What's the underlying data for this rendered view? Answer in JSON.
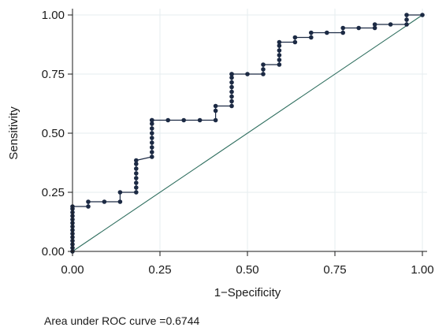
{
  "chart_data": {
    "type": "line",
    "xlabel": "1−Specificity",
    "ylabel": "Sensitivity",
    "xlim": [
      0,
      1
    ],
    "ylim": [
      0,
      1
    ],
    "x_ticks": [
      0,
      0.25,
      0.5,
      0.75,
      1
    ],
    "y_ticks": [
      0,
      0.25,
      0.5,
      0.75,
      1
    ],
    "x_tick_labels": [
      "0.00",
      "0.25",
      "0.50",
      "0.75",
      "1.00"
    ],
    "y_tick_labels": [
      "0.00",
      "0.25",
      "0.50",
      "0.75",
      "1.00"
    ],
    "grid": true,
    "footnote": "Area under ROC curve =0.6744",
    "colors": {
      "curve": "#1c2a44",
      "points": "#1c2a44",
      "reference": "#2e6e5e",
      "grid": "#e6ecef",
      "axis": "#1a1a1a"
    },
    "series": [
      {
        "x": [
          0,
          0,
          0,
          0,
          0,
          0,
          0,
          0,
          0,
          0,
          0,
          0,
          0,
          0,
          0.045,
          0.045,
          0.091,
          0.136,
          0.136,
          0.182,
          0.182,
          0.182,
          0.182,
          0.182,
          0.182,
          0.182,
          0.182,
          0.227,
          0.227,
          0.227,
          0.227,
          0.227,
          0.227,
          0.227,
          0.227,
          0.227,
          0.227,
          0.273,
          0.318,
          0.364,
          0.409,
          0.409,
          0.409,
          0.455,
          0.455,
          0.455,
          0.455,
          0.455,
          0.455,
          0.455,
          0.455,
          0.455,
          0.5,
          0.545,
          0.545,
          0.545,
          0.591,
          0.591,
          0.591,
          0.591,
          0.591,
          0.591,
          0.636,
          0.636,
          0.682,
          0.682,
          0.727,
          0.773,
          0.773,
          0.818,
          0.864,
          0.864,
          0.909,
          0.955,
          0.955,
          0.955,
          1
        ],
        "y": [
          0,
          0.015,
          0.03,
          0.045,
          0.06,
          0.075,
          0.09,
          0.105,
          0.12,
          0.135,
          0.15,
          0.165,
          0.18,
          0.19,
          0.19,
          0.21,
          0.21,
          0.21,
          0.25,
          0.25,
          0.27,
          0.29,
          0.31,
          0.33,
          0.35,
          0.37,
          0.385,
          0.4,
          0.42,
          0.44,
          0.46,
          0.48,
          0.5,
          0.52,
          0.54,
          0.555,
          0.555,
          0.555,
          0.555,
          0.555,
          0.555,
          0.595,
          0.615,
          0.615,
          0.635,
          0.655,
          0.675,
          0.695,
          0.715,
          0.735,
          0.75,
          0.75,
          0.75,
          0.75,
          0.77,
          0.79,
          0.79,
          0.81,
          0.83,
          0.85,
          0.87,
          0.885,
          0.885,
          0.905,
          0.905,
          0.925,
          0.925,
          0.925,
          0.945,
          0.945,
          0.945,
          0.96,
          0.96,
          0.96,
          0.98,
          1,
          1
        ]
      }
    ]
  }
}
